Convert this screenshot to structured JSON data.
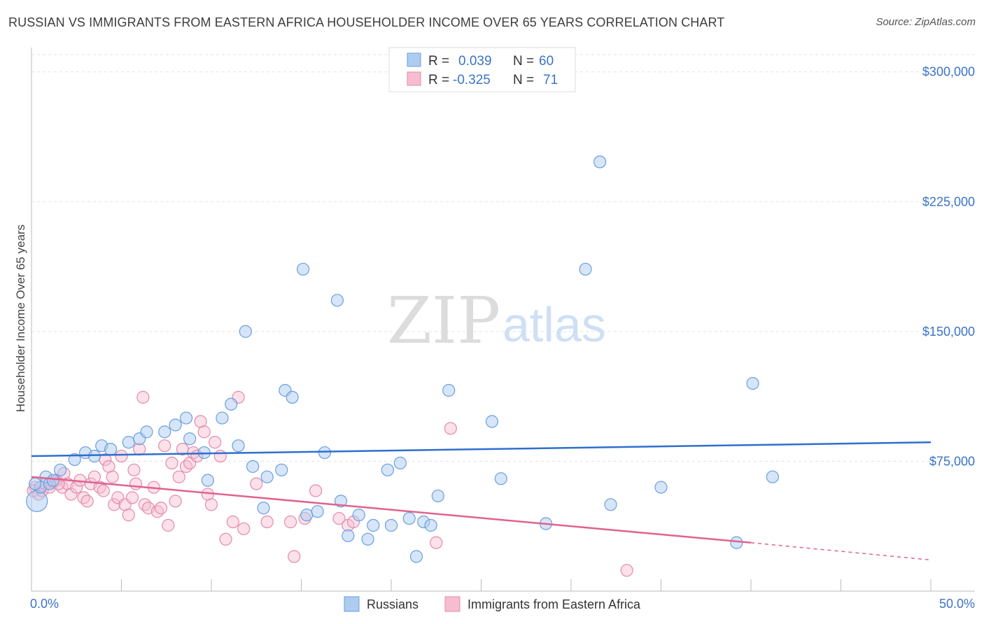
{
  "header": {
    "title": "RUSSIAN VS IMMIGRANTS FROM EASTERN AFRICA HOUSEHOLDER INCOME OVER 65 YEARS CORRELATION CHART",
    "source": "Source: ZipAtlas.com"
  },
  "watermark": {
    "zip": "ZIP",
    "atlas": "atlas"
  },
  "legend": {
    "r_label": "R =",
    "n_label": "N =",
    "rows": [
      {
        "r": "0.039",
        "n": "60",
        "color": "#aecbf0"
      },
      {
        "r": "-0.325",
        "n": "71",
        "color": "#f6bdd0"
      }
    ]
  },
  "bottom_legend": [
    {
      "label": "Russians",
      "color": "#aecbf0"
    },
    {
      "label": "Immigrants from Eastern Africa",
      "color": "#f6bdd0"
    }
  ],
  "colors": {
    "russians_fill": "#aecbf0",
    "russians_stroke": "#6a9fe0",
    "russians_line": "#2e6fcf",
    "africa_fill": "#f6bdd0",
    "africa_stroke": "#e58aab",
    "africa_line": "#e0628f",
    "tick_text": "#3b74c6",
    "grid": "#e2e2e2"
  },
  "chart_data": {
    "type": "scatter",
    "title": "RUSSIAN VS IMMIGRANTS FROM EASTERN AFRICA HOUSEHOLDER INCOME OVER 65 YEARS CORRELATION CHART",
    "xlabel": "",
    "ylabel": "Householder Income Over 65 years",
    "xlim": [
      0,
      50
    ],
    "ylim": [
      0,
      310000
    ],
    "x_tick_labels": [
      "0.0%",
      "50.0%"
    ],
    "x_tick_values": [
      0,
      50
    ],
    "y_ticks": [
      75000,
      150000,
      225000,
      300000
    ],
    "y_tick_labels": [
      "$75,000",
      "$150,000",
      "$225,000",
      "$300,000"
    ],
    "grid": true,
    "legend_placement": "top-center",
    "series": [
      {
        "name": "Russians",
        "R": 0.039,
        "N": 60,
        "trend": {
          "x": [
            0,
            50
          ],
          "y": [
            78000,
            86000
          ]
        },
        "points": [
          [
            0.3,
            52000
          ],
          [
            0.5,
            60000
          ],
          [
            0.8,
            66000
          ],
          [
            1.0,
            62000
          ],
          [
            1.2,
            64000
          ],
          [
            1.6,
            70000
          ],
          [
            2.4,
            76000
          ],
          [
            3.0,
            80000
          ],
          [
            3.5,
            78000
          ],
          [
            3.9,
            84000
          ],
          [
            4.4,
            82000
          ],
          [
            5.4,
            86000
          ],
          [
            6.0,
            88000
          ],
          [
            6.4,
            92000
          ],
          [
            7.4,
            92000
          ],
          [
            8.0,
            96000
          ],
          [
            8.6,
            100000
          ],
          [
            8.8,
            88000
          ],
          [
            9.6,
            80000
          ],
          [
            9.8,
            64000
          ],
          [
            10.6,
            100000
          ],
          [
            11.1,
            108000
          ],
          [
            11.5,
            84000
          ],
          [
            11.9,
            150000
          ],
          [
            12.3,
            72000
          ],
          [
            12.9,
            48000
          ],
          [
            13.1,
            66000
          ],
          [
            13.9,
            70000
          ],
          [
            14.1,
            116000
          ],
          [
            14.5,
            112000
          ],
          [
            15.1,
            186000
          ],
          [
            15.3,
            44000
          ],
          [
            15.9,
            46000
          ],
          [
            16.3,
            80000
          ],
          [
            17.0,
            168000
          ],
          [
            17.2,
            52000
          ],
          [
            17.6,
            32000
          ],
          [
            18.2,
            44000
          ],
          [
            18.7,
            30000
          ],
          [
            19.0,
            38000
          ],
          [
            19.8,
            70000
          ],
          [
            20.0,
            38000
          ],
          [
            20.5,
            74000
          ],
          [
            21.0,
            42000
          ],
          [
            21.4,
            20000
          ],
          [
            21.8,
            40000
          ],
          [
            22.2,
            38000
          ],
          [
            22.6,
            55000
          ],
          [
            23.2,
            116000
          ],
          [
            25.6,
            98000
          ],
          [
            26.1,
            65000
          ],
          [
            28.6,
            39000
          ],
          [
            30.8,
            186000
          ],
          [
            31.6,
            248000
          ],
          [
            32.2,
            50000
          ],
          [
            35.0,
            60000
          ],
          [
            39.2,
            28000
          ],
          [
            40.1,
            120000
          ],
          [
            41.2,
            66000
          ],
          [
            0.2,
            62000
          ]
        ]
      },
      {
        "name": "Immigrants from Eastern Africa",
        "R": -0.325,
        "N": 71,
        "trend_solid": {
          "x": [
            0,
            40
          ],
          "y": [
            66000,
            28000
          ]
        },
        "trend_dashed": {
          "x": [
            40,
            50
          ],
          "y": [
            28000,
            18000
          ]
        },
        "points": [
          [
            0.2,
            60000
          ],
          [
            0.4,
            56000
          ],
          [
            0.6,
            58000
          ],
          [
            0.8,
            62000
          ],
          [
            1.0,
            60000
          ],
          [
            1.2,
            63000
          ],
          [
            1.4,
            64000
          ],
          [
            1.7,
            60000
          ],
          [
            1.8,
            68000
          ],
          [
            2.0,
            62000
          ],
          [
            2.2,
            56000
          ],
          [
            2.5,
            60000
          ],
          [
            2.7,
            64000
          ],
          [
            2.9,
            54000
          ],
          [
            3.1,
            52000
          ],
          [
            3.3,
            62000
          ],
          [
            3.5,
            66000
          ],
          [
            3.8,
            60000
          ],
          [
            4.0,
            58000
          ],
          [
            4.1,
            76000
          ],
          [
            4.3,
            72000
          ],
          [
            4.5,
            66000
          ],
          [
            4.6,
            50000
          ],
          [
            4.8,
            54000
          ],
          [
            5.0,
            78000
          ],
          [
            5.2,
            50000
          ],
          [
            5.4,
            44000
          ],
          [
            5.6,
            54000
          ],
          [
            5.7,
            70000
          ],
          [
            5.8,
            62000
          ],
          [
            6.0,
            82000
          ],
          [
            6.2,
            112000
          ],
          [
            6.3,
            50000
          ],
          [
            6.5,
            48000
          ],
          [
            6.8,
            60000
          ],
          [
            7.0,
            46000
          ],
          [
            7.2,
            48000
          ],
          [
            7.4,
            84000
          ],
          [
            7.6,
            38000
          ],
          [
            7.8,
            74000
          ],
          [
            8.0,
            52000
          ],
          [
            8.2,
            66000
          ],
          [
            8.4,
            82000
          ],
          [
            8.6,
            72000
          ],
          [
            8.8,
            74000
          ],
          [
            9.0,
            80000
          ],
          [
            9.2,
            78000
          ],
          [
            9.4,
            98000
          ],
          [
            9.6,
            92000
          ],
          [
            9.8,
            56000
          ],
          [
            10.0,
            50000
          ],
          [
            10.2,
            86000
          ],
          [
            10.5,
            78000
          ],
          [
            10.8,
            30000
          ],
          [
            11.2,
            40000
          ],
          [
            11.5,
            112000
          ],
          [
            11.8,
            36000
          ],
          [
            12.5,
            62000
          ],
          [
            13.1,
            40000
          ],
          [
            14.4,
            40000
          ],
          [
            14.6,
            20000
          ],
          [
            15.2,
            42000
          ],
          [
            15.8,
            58000
          ],
          [
            17.1,
            42000
          ],
          [
            17.6,
            38000
          ],
          [
            17.9,
            40000
          ],
          [
            22.5,
            28000
          ],
          [
            23.3,
            94000
          ],
          [
            33.1,
            12000
          ],
          [
            0.1,
            58000
          ],
          [
            1.5,
            62000
          ]
        ]
      }
    ]
  }
}
